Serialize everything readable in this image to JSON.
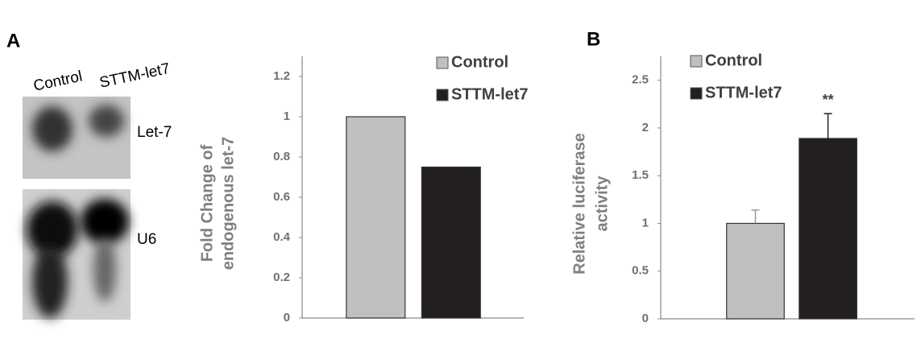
{
  "figure": {
    "panels": [
      "A",
      "B"
    ]
  },
  "blot": {
    "lanes": [
      "Control",
      "STTM-let7"
    ],
    "bands": [
      "Let-7",
      "U6"
    ]
  },
  "chart_data": [
    {
      "type": "bar",
      "ylabel": [
        "Fold Change of",
        "endogenous let-7"
      ],
      "categories": [
        null
      ],
      "series": [
        {
          "name": "Control",
          "color": "#c0c0c0",
          "values": [
            1
          ]
        },
        {
          "name": "STTM-let7",
          "color": "#231f20",
          "values": [
            0.75
          ]
        }
      ],
      "ylim": [
        0,
        1.3
      ],
      "yticks": [
        0,
        0.2,
        0.4,
        0.6,
        0.8,
        1,
        1.2
      ],
      "grid": false
    },
    {
      "type": "bar",
      "ylabel": [
        "Relative luciferase",
        "activity"
      ],
      "categories": [
        null
      ],
      "series": [
        {
          "name": "Control",
          "color": "#c0c0c0",
          "values": [
            1
          ],
          "errors": [
            0.14
          ]
        },
        {
          "name": "STTM-let7",
          "color": "#231f20",
          "values": [
            1.89
          ],
          "errors": [
            0.26
          ],
          "annotation": "**"
        }
      ],
      "ylim": [
        0,
        2.75
      ],
      "yticks": [
        0,
        0.5,
        1,
        1.5,
        2,
        2.5
      ],
      "grid": false
    }
  ]
}
